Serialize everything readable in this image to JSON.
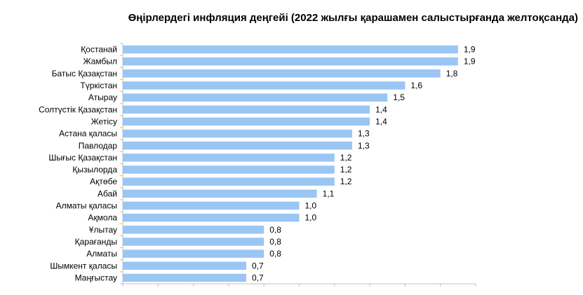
{
  "chart_data": {
    "type": "bar",
    "orientation": "horizontal",
    "title": "Өңірлердегі инфляция деңгейі (2022 жылғы қарашамен салыстырғанда желтоқсанда)",
    "categories": [
      "Қостанай",
      "Жамбыл",
      "Батыс Қазақстан",
      "Түркістан",
      "Атырау",
      "Солтүстік Қазақстан",
      "Жетісу",
      "Астана қаласы",
      "Павлодар",
      "Шығыс Қазақстан",
      "Қызылорда",
      "Ақтөбе",
      "Абай",
      "Алматы қаласы",
      "Ақмола",
      "Ұлытау",
      "Қарағанды",
      "Алматы",
      "Шымкент қаласы",
      "Маңғыстау"
    ],
    "values": [
      1.9,
      1.9,
      1.8,
      1.6,
      1.5,
      1.4,
      1.4,
      1.3,
      1.3,
      1.2,
      1.2,
      1.2,
      1.1,
      1.0,
      1.0,
      0.8,
      0.8,
      0.8,
      0.7,
      0.7
    ],
    "value_labels": [
      "1,9",
      "1,9",
      "1,8",
      "1,6",
      "1,5",
      "1,4",
      "1,4",
      "1,3",
      "1,3",
      "1,2",
      "1,2",
      "1,2",
      "1,1",
      "1,0",
      "1,0",
      "0,8",
      "0,8",
      "0,8",
      "0,7",
      "0,7"
    ],
    "xlim": [
      0,
      2.0
    ],
    "x_tick_step": 0.2,
    "grid": false,
    "bar_color": "#9ac6f4",
    "axis_color": "#bfbfbf"
  }
}
